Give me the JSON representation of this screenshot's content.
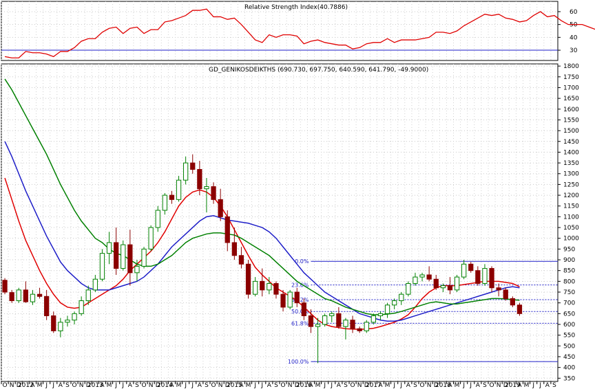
{
  "chart_data": [
    {
      "type": "line",
      "title": "Relative Strength Index(40.7886)",
      "ylim": [
        22,
        68
      ],
      "yticks": [
        30,
        40,
        50,
        60
      ],
      "reference_line": 30,
      "series": [
        {
          "color": "#e00000",
          "values": [
            25,
            24,
            24,
            29,
            28,
            28,
            27,
            25,
            29,
            29,
            32,
            37,
            39,
            39,
            44,
            47,
            48,
            43,
            47,
            48,
            43,
            46,
            46,
            52,
            53,
            55,
            57,
            61,
            61,
            62,
            56,
            56,
            54,
            55,
            50,
            44,
            38,
            36,
            42,
            40,
            42,
            42,
            41,
            35,
            37,
            38,
            36,
            35,
            34,
            34,
            31,
            32,
            35,
            36,
            36,
            39,
            36,
            38,
            38,
            38,
            39,
            40,
            44,
            44,
            43,
            45,
            49,
            52,
            55,
            58,
            57,
            58,
            55,
            54,
            52,
            53,
            57,
            60,
            56,
            57,
            53,
            50,
            50,
            50,
            48,
            46,
            44,
            41
          ]
        }
      ],
      "colors": {
        "rsi_line": "#e00000",
        "reference": "#1e1ec8"
      }
    },
    {
      "type": "candlestick",
      "title": "GD_GENIKOSDEIKTHS (690.730, 697.750, 640.590, 641.790, -49.9000)",
      "ylim": [
        335,
        1810
      ],
      "yticks": [
        350,
        400,
        450,
        500,
        550,
        600,
        650,
        700,
        750,
        800,
        850,
        900,
        950,
        1000,
        1050,
        1100,
        1150,
        1200,
        1250,
        1300,
        1350,
        1400,
        1450,
        1500,
        1550,
        1600,
        1650,
        1700,
        1750,
        1800
      ],
      "x_tick_labels": [
        "O",
        "N",
        "D",
        "2012",
        "A",
        "M",
        "J",
        "J",
        "A",
        "S",
        "O",
        "N",
        "D",
        "2013",
        "A",
        "M",
        "J",
        "J",
        "A",
        "S",
        "O",
        "N",
        "D",
        "2014",
        "A",
        "M",
        "J",
        "J",
        "A",
        "S",
        "O",
        "N",
        "D",
        "2015",
        "A",
        "M",
        "J",
        "J",
        "A",
        "S",
        "O",
        "N",
        "D",
        "2016",
        "A",
        "M",
        "J",
        "J",
        "A",
        "S",
        "O",
        "N",
        "D",
        "2017",
        "A",
        "M",
        "J",
        "J",
        "A",
        "S",
        "O",
        "N",
        "D",
        "2018",
        "A",
        "M",
        "J",
        "J",
        "A",
        "S",
        "O",
        "N",
        "D",
        "2019",
        "A",
        "M",
        "J",
        "J",
        "A",
        "S"
      ],
      "candles": [
        [
          805,
          815,
          740,
          750
        ],
        [
          748,
          760,
          700,
          710
        ],
        [
          710,
          770,
          700,
          760
        ],
        [
          760,
          800,
          700,
          705
        ],
        [
          705,
          760,
          690,
          740
        ],
        [
          740,
          770,
          720,
          730
        ],
        [
          730,
          760,
          620,
          640
        ],
        [
          640,
          660,
          560,
          570
        ],
        [
          570,
          630,
          540,
          610
        ],
        [
          610,
          640,
          590,
          620
        ],
        [
          620,
          660,
          600,
          650
        ],
        [
          650,
          730,
          640,
          710
        ],
        [
          710,
          780,
          690,
          760
        ],
        [
          760,
          830,
          750,
          810
        ],
        [
          810,
          950,
          800,
          930
        ],
        [
          930,
          1030,
          880,
          980
        ],
        [
          980,
          1050,
          830,
          860
        ],
        [
          860,
          990,
          850,
          970
        ],
        [
          970,
          1040,
          780,
          840
        ],
        [
          840,
          900,
          800,
          870
        ],
        [
          870,
          960,
          860,
          950
        ],
        [
          950,
          1060,
          940,
          1050
        ],
        [
          1050,
          1150,
          1030,
          1130
        ],
        [
          1130,
          1210,
          1110,
          1200
        ],
        [
          1200,
          1220,
          1160,
          1180
        ],
        [
          1180,
          1290,
          1170,
          1270
        ],
        [
          1270,
          1380,
          1250,
          1350
        ],
        [
          1350,
          1390,
          1300,
          1320
        ],
        [
          1320,
          1360,
          1200,
          1230
        ],
        [
          1230,
          1280,
          1120,
          1240
        ],
        [
          1240,
          1260,
          1160,
          1180
        ],
        [
          1180,
          1230,
          1080,
          1100
        ],
        [
          1100,
          1130,
          940,
          980
        ],
        [
          980,
          1050,
          900,
          920
        ],
        [
          920,
          960,
          860,
          880
        ],
        [
          880,
          900,
          720,
          740
        ],
        [
          740,
          820,
          730,
          800
        ],
        [
          800,
          860,
          730,
          760
        ],
        [
          760,
          820,
          740,
          790
        ],
        [
          790,
          800,
          720,
          740
        ],
        [
          740,
          760,
          660,
          680
        ],
        [
          680,
          760,
          670,
          750
        ],
        [
          750,
          770,
          680,
          700
        ],
        [
          700,
          720,
          620,
          640
        ],
        [
          640,
          670,
          560,
          590
        ],
        [
          590,
          630,
          420,
          600
        ],
        [
          600,
          650,
          590,
          640
        ],
        [
          640,
          660,
          610,
          650
        ],
        [
          650,
          680,
          580,
          590
        ],
        [
          590,
          630,
          530,
          620
        ],
        [
          620,
          640,
          560,
          580
        ],
        [
          580,
          590,
          560,
          570
        ],
        [
          570,
          620,
          560,
          610
        ],
        [
          610,
          650,
          600,
          640
        ],
        [
          640,
          660,
          620,
          650
        ],
        [
          650,
          700,
          630,
          690
        ],
        [
          690,
          720,
          670,
          710
        ],
        [
          710,
          750,
          690,
          740
        ],
        [
          740,
          800,
          730,
          790
        ],
        [
          790,
          840,
          780,
          820
        ],
        [
          820,
          840,
          800,
          830
        ],
        [
          830,
          870,
          800,
          810
        ],
        [
          810,
          830,
          760,
          770
        ],
        [
          770,
          790,
          750,
          780
        ],
        [
          780,
          820,
          740,
          760
        ],
        [
          760,
          830,
          750,
          820
        ],
        [
          820,
          900,
          810,
          880
        ],
        [
          880,
          890,
          840,
          850
        ],
        [
          850,
          870,
          780,
          790
        ],
        [
          790,
          880,
          780,
          860
        ],
        [
          860,
          870,
          750,
          770
        ],
        [
          770,
          790,
          730,
          760
        ],
        [
          760,
          770,
          710,
          720
        ],
        [
          720,
          730,
          680,
          690
        ],
        [
          690,
          700,
          640,
          650
        ]
      ],
      "moving_averages": [
        {
          "color": "#e00000",
          "values": [
            1280,
            1180,
            1080,
            990,
            920,
            850,
            790,
            740,
            700,
            680,
            675,
            680,
            700,
            720,
            740,
            760,
            780,
            810,
            850,
            880,
            910,
            940,
            980,
            1030,
            1090,
            1150,
            1190,
            1215,
            1225,
            1215,
            1190,
            1150,
            1100,
            1040,
            980,
            920,
            865,
            830,
            800,
            770,
            750,
            730,
            710,
            680,
            650,
            620,
            600,
            590,
            585,
            580,
            578,
            577,
            578,
            582,
            590,
            600,
            610,
            625,
            645,
            680,
            720,
            750,
            770,
            780,
            780,
            780,
            785,
            790,
            795,
            800,
            800,
            800,
            795,
            790,
            775
          ]
        },
        {
          "color": "#1e1ec8",
          "values": [
            1450,
            1380,
            1300,
            1220,
            1150,
            1080,
            1010,
            950,
            890,
            850,
            820,
            790,
            770,
            760,
            760,
            760,
            770,
            780,
            790,
            800,
            820,
            850,
            880,
            920,
            960,
            990,
            1020,
            1050,
            1080,
            1100,
            1105,
            1095,
            1085,
            1080,
            1075,
            1070,
            1060,
            1050,
            1030,
            1000,
            960,
            920,
            880,
            840,
            810,
            780,
            750,
            730,
            710,
            690,
            670,
            650,
            640,
            630,
            620,
            615,
            615,
            620,
            630,
            640,
            650,
            660,
            670,
            680,
            690,
            700,
            710,
            720,
            730,
            740,
            750,
            760,
            770,
            775,
            770
          ]
        },
        {
          "color": "#008000",
          "values": [
            1740,
            1690,
            1630,
            1570,
            1510,
            1450,
            1390,
            1320,
            1250,
            1190,
            1130,
            1080,
            1040,
            1000,
            980,
            950,
            930,
            920,
            900,
            880,
            870,
            870,
            880,
            900,
            920,
            950,
            980,
            1000,
            1010,
            1020,
            1025,
            1025,
            1020,
            1015,
            1000,
            980,
            960,
            940,
            920,
            890,
            860,
            830,
            800,
            780,
            760,
            740,
            720,
            710,
            695,
            680,
            670,
            660,
            650,
            645,
            645,
            648,
            652,
            660,
            670,
            680,
            690,
            700,
            705,
            700,
            695,
            695,
            700,
            705,
            710,
            715,
            720,
            720,
            718,
            715,
            712
          ]
        }
      ],
      "fibonacci": [
        {
          "label": "0.0%",
          "value": 893
        },
        {
          "label": "23.6%",
          "value": 783
        },
        {
          "label": "38.2%",
          "value": 715
        },
        {
          "label": "50.0%",
          "value": 660
        },
        {
          "label": "61.8%",
          "value": 605
        },
        {
          "label": "100.0%",
          "value": 427
        }
      ],
      "colors": {
        "up": "#ffffff",
        "up_border": "#008000",
        "down": "#8b0000",
        "fib": "#1e1ec8"
      }
    }
  ]
}
